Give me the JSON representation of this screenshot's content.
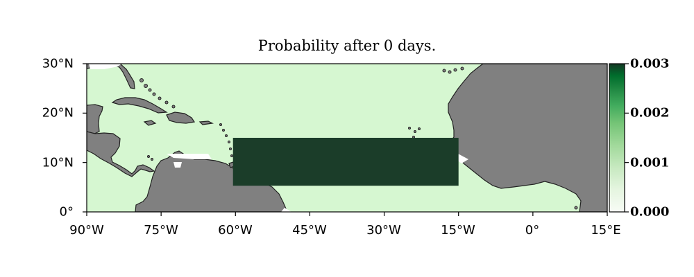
{
  "title": "Probability after 0 days.",
  "map": {
    "lon_range": [
      -90,
      15
    ],
    "lat_range": [
      0,
      30
    ],
    "ocean_color": "#d6f7d1",
    "land_color": "#808080",
    "coast_color": "#222222"
  },
  "lat_ticks": [
    {
      "value": 30,
      "label": "30°N"
    },
    {
      "value": 20,
      "label": "20°N"
    },
    {
      "value": 10,
      "label": "10°N"
    },
    {
      "value": 0,
      "label": "0°"
    }
  ],
  "lon_ticks": [
    {
      "value": -90,
      "label": "90°W"
    },
    {
      "value": -75,
      "label": "75°W"
    },
    {
      "value": -60,
      "label": "60°W"
    },
    {
      "value": -45,
      "label": "45°W"
    },
    {
      "value": -30,
      "label": "30°W"
    },
    {
      "value": -15,
      "label": "15°W"
    },
    {
      "value": 0,
      "label": "0°"
    },
    {
      "value": 15,
      "label": "15°E"
    }
  ],
  "release_region": {
    "lon": [
      -60.5,
      -15
    ],
    "lat": [
      5.3,
      15
    ],
    "probability": 0.003,
    "color": "#1b3d29"
  },
  "colorbar": {
    "min": 0.0,
    "max": 0.003,
    "colormap": "Greens",
    "ticks": [
      {
        "value": 0.003,
        "label": "0.003"
      },
      {
        "value": 0.002,
        "label": "0.002"
      },
      {
        "value": 0.001,
        "label": "0.001"
      },
      {
        "value": 0.0,
        "label": "0.000"
      }
    ]
  }
}
